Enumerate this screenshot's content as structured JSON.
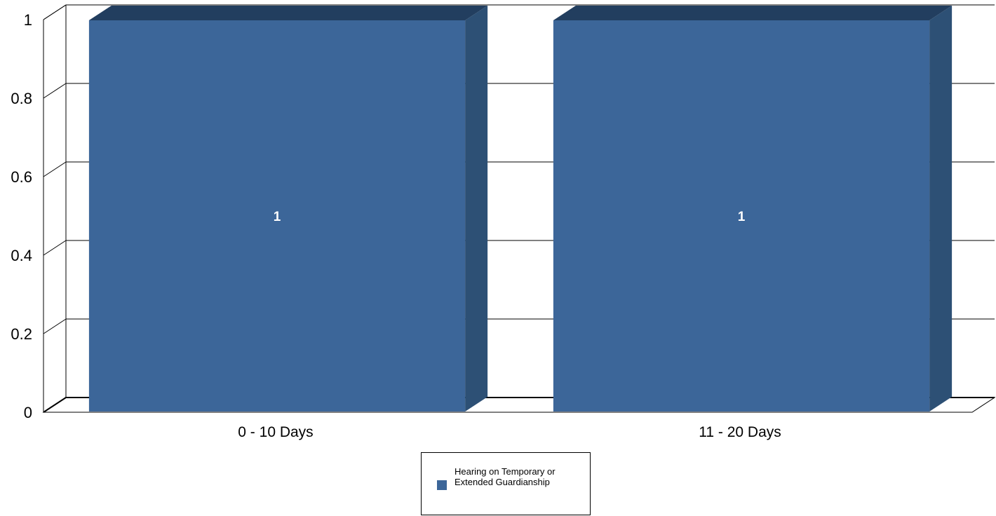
{
  "chart_data": {
    "type": "bar",
    "style": "3d",
    "categories": [
      "0 - 10 Days",
      "11 - 20 Days"
    ],
    "series": [
      {
        "name": "Hearing on Temporary or Extended Guardianship",
        "values": [
          1,
          1
        ],
        "color": "#3c6699"
      }
    ],
    "data_labels": [
      "1",
      "1"
    ],
    "y_ticks": [
      "0",
      "0.2",
      "0.4",
      "0.6",
      "0.8",
      "1"
    ],
    "ylim": [
      0,
      1
    ],
    "grid": true,
    "legend_position": "bottom-center"
  }
}
